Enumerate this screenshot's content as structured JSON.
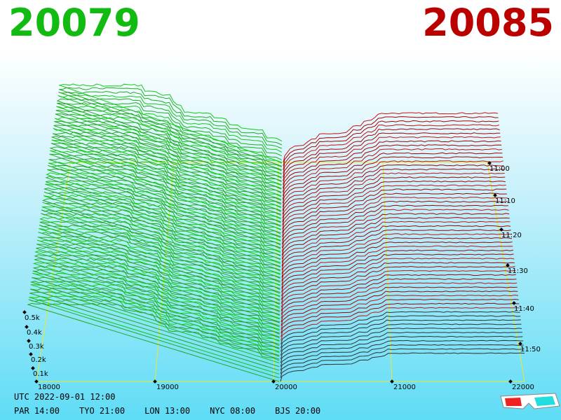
{
  "header": {
    "bid": "20079",
    "ask": "20085"
  },
  "price_axis": {
    "ticks": [
      "18000",
      "19000",
      "20000",
      "21000",
      "22000"
    ]
  },
  "depth_axis": {
    "ticks": [
      "0.1k",
      "0.2k",
      "0.3k",
      "0.4k",
      "0.5k"
    ]
  },
  "time_axis": {
    "ticks": [
      "11:00",
      "11:10",
      "11:20",
      "11:30",
      "11:40",
      "11:50"
    ]
  },
  "footer": {
    "utc": "UTC 2022-09-01 12:00",
    "zones": [
      "PAR 14:00",
      "TYO 21:00",
      "LON 13:00",
      "NYC 08:00",
      "BJS 20:00"
    ]
  }
}
